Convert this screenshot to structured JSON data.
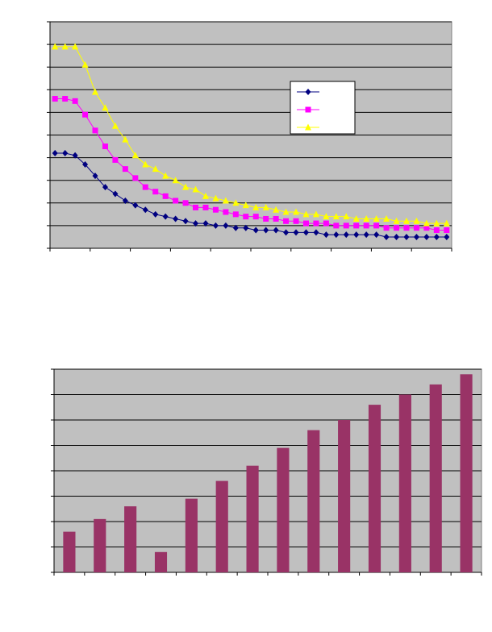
{
  "chart_data": [
    {
      "type": "line",
      "categories": [
        null,
        null,
        null,
        null,
        null,
        null,
        null,
        null,
        null,
        null,
        null,
        null,
        null,
        null,
        null,
        null,
        null,
        null,
        null,
        null,
        null,
        null,
        null,
        null,
        null,
        null,
        null,
        null,
        null,
        null,
        null,
        null,
        null,
        null,
        null,
        null,
        null,
        null,
        null,
        null
      ],
      "series": [
        {
          "color": "#000080",
          "marker": "diamond",
          "values": [
            4.2,
            4.2,
            4.1,
            3.7,
            3.2,
            2.7,
            2.4,
            2.1,
            1.9,
            1.7,
            1.5,
            1.4,
            1.3,
            1.2,
            1.1,
            1.1,
            1.0,
            1.0,
            0.9,
            0.9,
            0.8,
            0.8,
            0.8,
            0.7,
            0.7,
            0.7,
            0.7,
            0.6,
            0.6,
            0.6,
            0.6,
            0.6,
            0.6,
            0.5,
            0.5,
            0.5,
            0.5,
            0.5,
            0.5,
            0.5
          ]
        },
        {
          "color": "#ff00ff",
          "marker": "square",
          "values": [
            6.6,
            6.6,
            6.5,
            5.9,
            5.2,
            4.5,
            3.9,
            3.5,
            3.1,
            2.7,
            2.5,
            2.3,
            2.1,
            2.0,
            1.8,
            1.8,
            1.7,
            1.6,
            1.5,
            1.4,
            1.4,
            1.3,
            1.3,
            1.2,
            1.2,
            1.1,
            1.1,
            1.1,
            1.0,
            1.0,
            1.0,
            1.0,
            1.0,
            0.9,
            0.9,
            0.9,
            0.9,
            0.9,
            0.8,
            0.8
          ]
        },
        {
          "color": "#ffff00",
          "marker": "triangle",
          "values": [
            8.9,
            8.9,
            8.9,
            8.1,
            6.9,
            6.2,
            5.4,
            4.8,
            4.1,
            3.7,
            3.5,
            3.2,
            3.0,
            2.7,
            2.6,
            2.3,
            2.2,
            2.1,
            2.0,
            1.9,
            1.8,
            1.8,
            1.7,
            1.6,
            1.6,
            1.5,
            1.5,
            1.4,
            1.4,
            1.4,
            1.3,
            1.3,
            1.3,
            1.3,
            1.2,
            1.2,
            1.2,
            1.1,
            1.1,
            1.1
          ]
        }
      ],
      "ylim": [
        0,
        10
      ],
      "yticks": [
        0,
        1,
        2,
        3,
        4,
        5,
        6,
        7,
        8,
        9,
        10
      ],
      "grid": true,
      "legend": "right"
    },
    {
      "type": "bar",
      "categories": [
        null,
        null,
        null,
        null,
        null,
        null,
        null,
        null,
        null,
        null,
        null,
        null,
        null,
        null
      ],
      "values": [
        1.6,
        2.1,
        2.6,
        0.8,
        2.9,
        3.6,
        4.2,
        4.9,
        5.6,
        6.0,
        6.6,
        7.0,
        7.4,
        7.8
      ],
      "color": "#993366",
      "ylim": [
        0,
        8
      ],
      "yticks": [
        0,
        1,
        2,
        3,
        4,
        5,
        6,
        7,
        8
      ],
      "grid": true
    }
  ]
}
